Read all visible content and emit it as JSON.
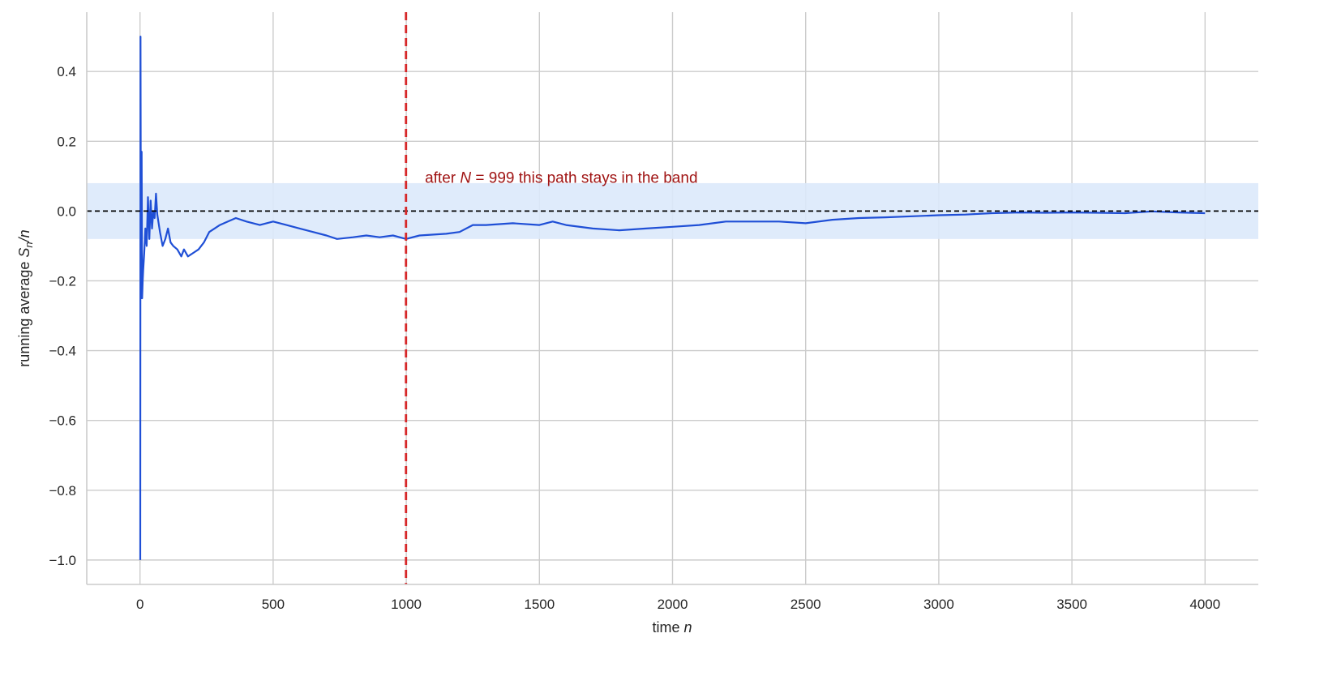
{
  "chart_data": {
    "type": "line",
    "title": "",
    "xlabel": "time",
    "xlabel_var": "n",
    "ylabel": "running average S_n/n",
    "ylabel_parts": {
      "prefix": "running average ",
      "S": "S",
      "sub": "n",
      "rest": "/n"
    },
    "xlim": [
      -200,
      4200
    ],
    "ylim": [
      -1.07,
      0.57
    ],
    "x_ticks": [
      0,
      500,
      1000,
      1500,
      2000,
      2500,
      3000,
      3500,
      4000
    ],
    "x_tick_labels": [
      "0",
      "500",
      "1000",
      "1500",
      "2000",
      "2500",
      "3000",
      "3500",
      "4000"
    ],
    "y_ticks": [
      0.4,
      0.2,
      0.0,
      -0.2,
      -0.4,
      -0.6,
      -0.8,
      -1.0
    ],
    "y_tick_labels": [
      "0.4",
      "0.2",
      "0.0",
      "−0.2",
      "−0.4",
      "−0.6",
      "−0.8",
      "−1.0"
    ],
    "grid": true,
    "band": {
      "lower": -0.08,
      "upper": 0.08,
      "color": "#dce9fb"
    },
    "reference_line": {
      "y": 0.0,
      "style": "dashed",
      "color": "#000000"
    },
    "vertical_line": {
      "x": 999,
      "style": "dashed",
      "color": "#d62728"
    },
    "annotation": {
      "before": "after ",
      "var": "N",
      "after": " = 999 this path stays in the band",
      "color": "#a01515",
      "x": 1070,
      "y": 0.1
    },
    "series": [
      {
        "color": "#1f4fd6",
        "points": [
          [
            1,
            -1.0
          ],
          [
            2,
            0.5
          ],
          [
            3,
            0.0
          ],
          [
            4,
            -0.25
          ],
          [
            6,
            0.17
          ],
          [
            8,
            -0.25
          ],
          [
            10,
            -0.2
          ],
          [
            12,
            -0.17
          ],
          [
            16,
            -0.12
          ],
          [
            20,
            -0.05
          ],
          [
            25,
            -0.1
          ],
          [
            30,
            0.04
          ],
          [
            35,
            -0.08
          ],
          [
            40,
            0.03
          ],
          [
            45,
            -0.05
          ],
          [
            50,
            0.0
          ],
          [
            55,
            -0.02
          ],
          [
            60,
            0.05
          ],
          [
            65,
            -0.01
          ],
          [
            75,
            -0.06
          ],
          [
            85,
            -0.1
          ],
          [
            95,
            -0.08
          ],
          [
            105,
            -0.05
          ],
          [
            115,
            -0.09
          ],
          [
            125,
            -0.1
          ],
          [
            140,
            -0.11
          ],
          [
            155,
            -0.13
          ],
          [
            165,
            -0.11
          ],
          [
            180,
            -0.13
          ],
          [
            200,
            -0.12
          ],
          [
            220,
            -0.11
          ],
          [
            240,
            -0.09
          ],
          [
            260,
            -0.06
          ],
          [
            280,
            -0.05
          ],
          [
            300,
            -0.04
          ],
          [
            330,
            -0.03
          ],
          [
            360,
            -0.02
          ],
          [
            400,
            -0.03
          ],
          [
            450,
            -0.04
          ],
          [
            500,
            -0.03
          ],
          [
            550,
            -0.04
          ],
          [
            600,
            -0.05
          ],
          [
            650,
            -0.06
          ],
          [
            700,
            -0.07
          ],
          [
            740,
            -0.08
          ],
          [
            800,
            -0.075
          ],
          [
            850,
            -0.07
          ],
          [
            900,
            -0.075
          ],
          [
            950,
            -0.07
          ],
          [
            999,
            -0.08
          ],
          [
            1050,
            -0.07
          ],
          [
            1150,
            -0.065
          ],
          [
            1200,
            -0.06
          ],
          [
            1250,
            -0.04
          ],
          [
            1300,
            -0.04
          ],
          [
            1400,
            -0.035
          ],
          [
            1500,
            -0.04
          ],
          [
            1550,
            -0.03
          ],
          [
            1600,
            -0.04
          ],
          [
            1700,
            -0.05
          ],
          [
            1800,
            -0.055
          ],
          [
            1900,
            -0.05
          ],
          [
            2000,
            -0.045
          ],
          [
            2100,
            -0.04
          ],
          [
            2200,
            -0.03
          ],
          [
            2300,
            -0.03
          ],
          [
            2400,
            -0.03
          ],
          [
            2500,
            -0.035
          ],
          [
            2600,
            -0.025
          ],
          [
            2700,
            -0.02
          ],
          [
            2800,
            -0.018
          ],
          [
            2900,
            -0.015
          ],
          [
            3000,
            -0.012
          ],
          [
            3100,
            -0.01
          ],
          [
            3200,
            -0.006
          ],
          [
            3300,
            -0.004
          ],
          [
            3400,
            -0.005
          ],
          [
            3500,
            -0.004
          ],
          [
            3600,
            -0.005
          ],
          [
            3700,
            -0.006
          ],
          [
            3800,
            -0.001
          ],
          [
            3900,
            -0.004
          ],
          [
            4000,
            -0.006
          ]
        ]
      }
    ]
  }
}
